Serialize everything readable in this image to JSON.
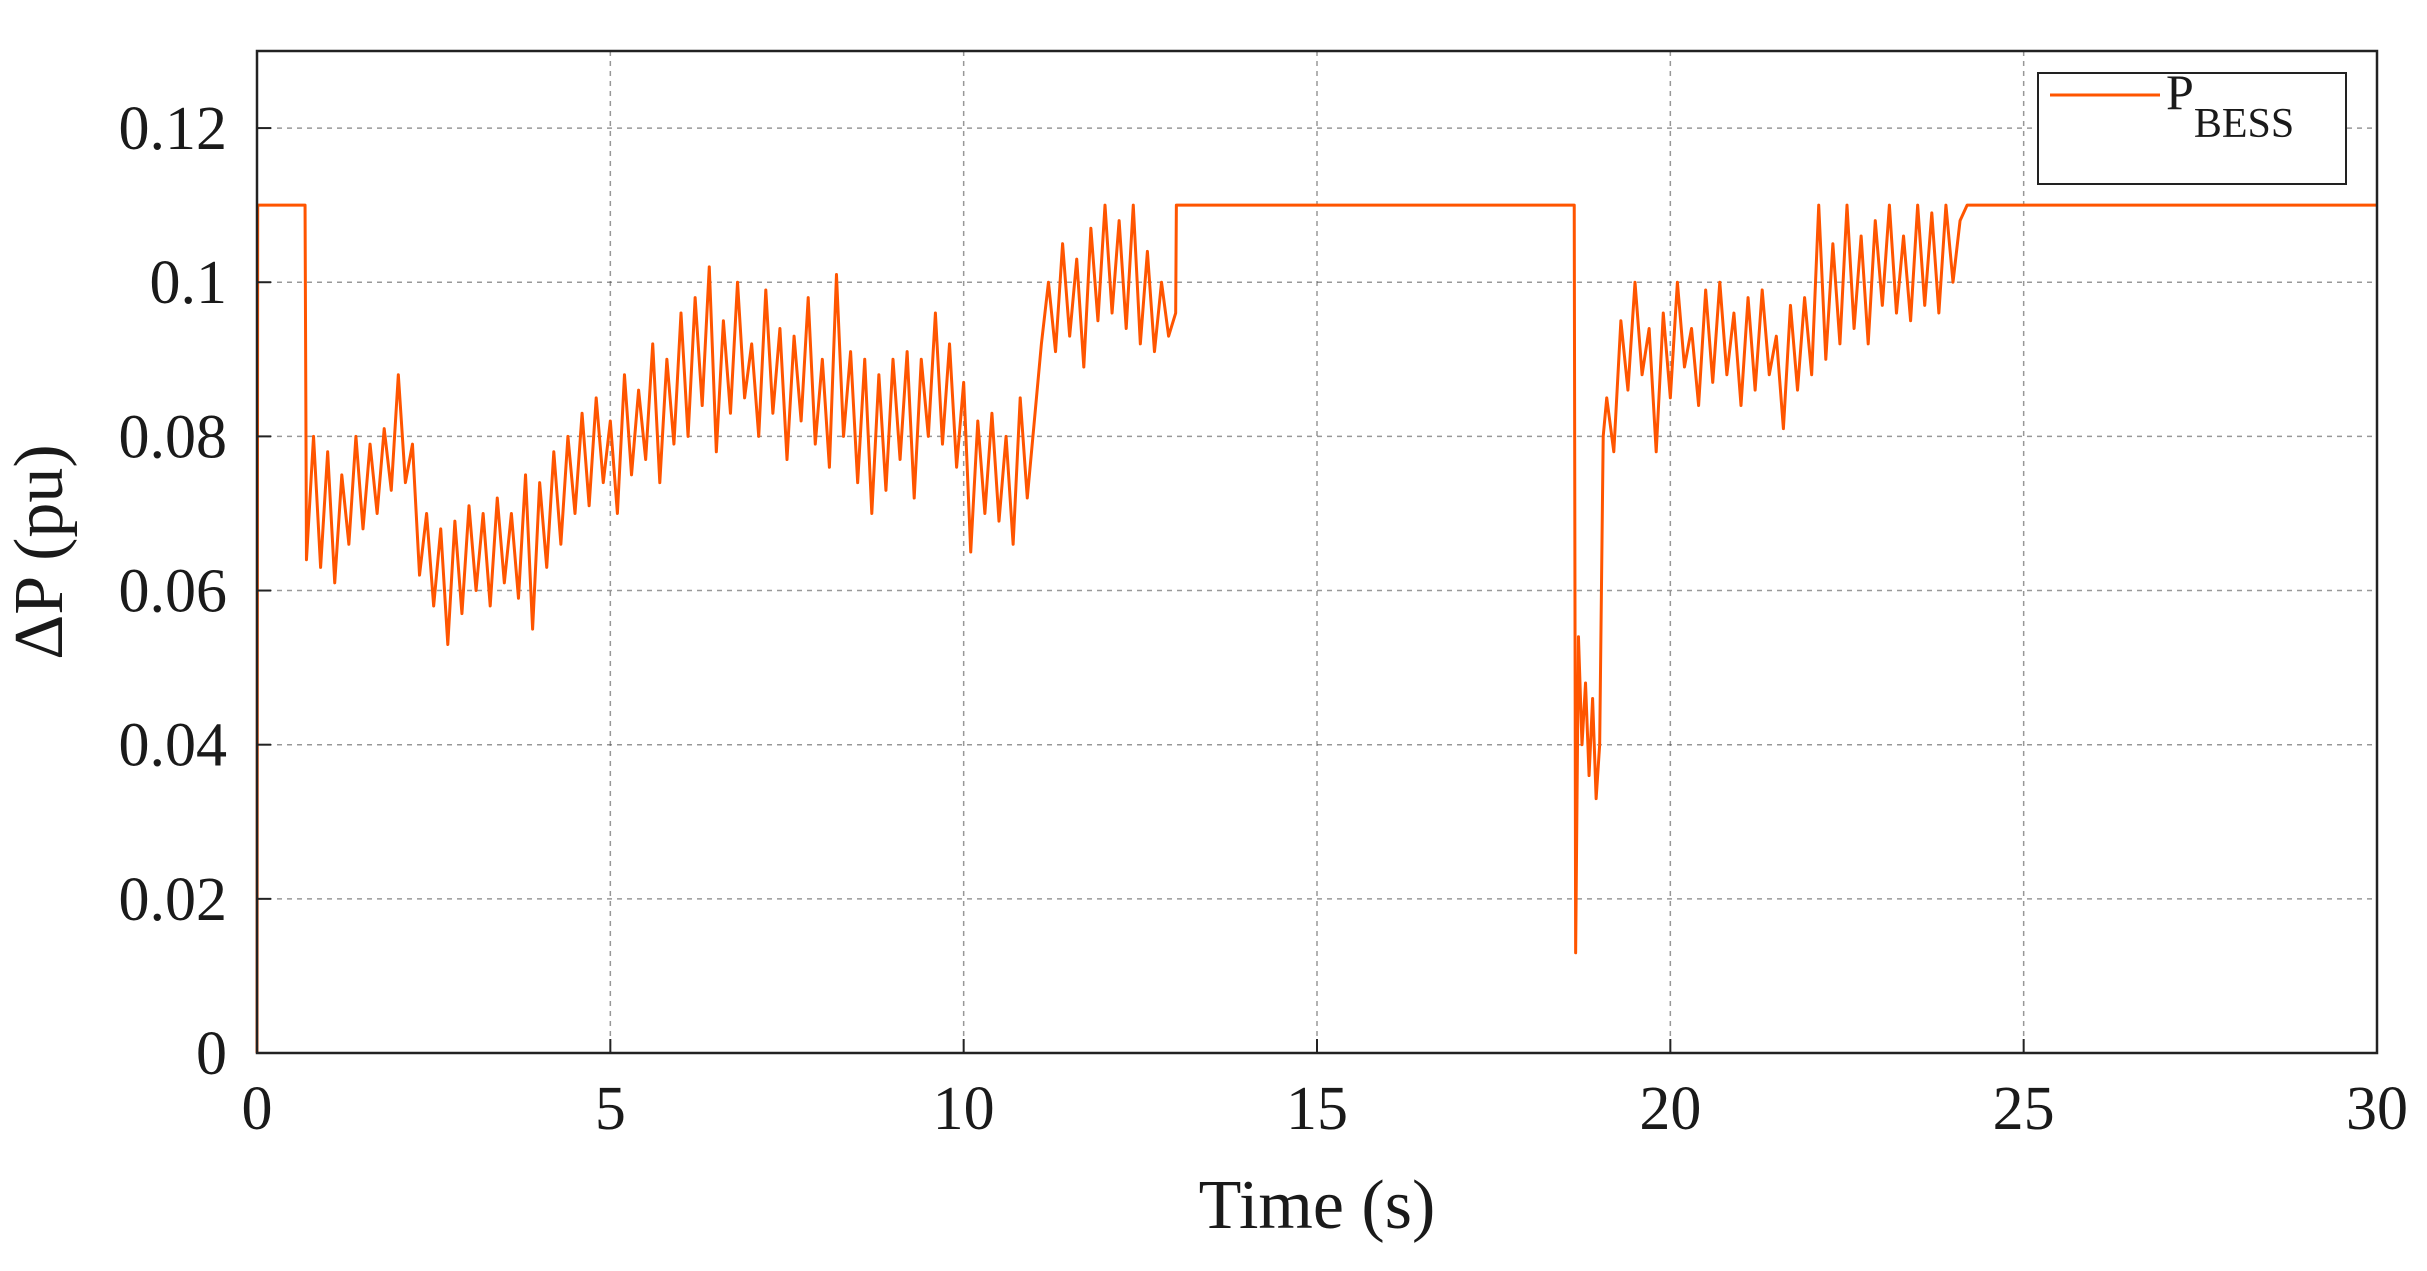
{
  "chart_data": {
    "type": "line",
    "xlabel": "Time (s)",
    "ylabel": "ΔP (pu)",
    "xlim": [
      0,
      30
    ],
    "xticks": [
      0,
      5,
      10,
      15,
      20,
      25,
      30
    ],
    "ylim": [
      0,
      0.13
    ],
    "yticks": [
      0,
      0.02,
      0.04,
      0.06,
      0.08,
      0.1,
      0.12
    ],
    "grid": true,
    "legend": "upper right",
    "x": [
      0,
      0.01,
      0.68,
      0.7,
      0.8,
      0.9,
      1.0,
      1.1,
      1.2,
      1.3,
      1.4,
      1.5,
      1.6,
      1.7,
      1.8,
      1.9,
      2.0,
      2.1,
      2.2,
      2.3,
      2.4,
      2.5,
      2.6,
      2.7,
      2.8,
      2.9,
      3.0,
      3.1,
      3.2,
      3.3,
      3.4,
      3.5,
      3.6,
      3.7,
      3.8,
      3.9,
      4.0,
      4.1,
      4.2,
      4.3,
      4.4,
      4.5,
      4.6,
      4.7,
      4.8,
      4.9,
      5.0,
      5.1,
      5.2,
      5.3,
      5.4,
      5.5,
      5.6,
      5.7,
      5.8,
      5.9,
      6.0,
      6.1,
      6.2,
      6.3,
      6.4,
      6.5,
      6.6,
      6.7,
      6.8,
      6.9,
      7.0,
      7.1,
      7.2,
      7.3,
      7.4,
      7.5,
      7.6,
      7.7,
      7.8,
      7.9,
      8.0,
      8.1,
      8.2,
      8.3,
      8.4,
      8.5,
      8.6,
      8.7,
      8.8,
      8.9,
      9.0,
      9.1,
      9.2,
      9.3,
      9.4,
      9.5,
      9.6,
      9.7,
      9.8,
      9.9,
      10.0,
      10.1,
      10.2,
      10.3,
      10.4,
      10.5,
      10.6,
      10.7,
      10.8,
      10.9,
      11.0,
      11.1,
      11.2,
      11.3,
      11.4,
      11.5,
      11.6,
      11.7,
      11.8,
      11.9,
      12.0,
      12.1,
      12.2,
      12.3,
      12.4,
      12.5,
      12.6,
      12.7,
      12.8,
      12.9,
      13.0,
      13.01,
      18.64,
      18.66,
      18.7,
      18.75,
      18.8,
      18.85,
      18.9,
      18.95,
      19.0,
      19.05,
      19.1,
      19.2,
      19.3,
      19.4,
      19.5,
      19.6,
      19.7,
      19.8,
      19.9,
      20.0,
      20.1,
      20.2,
      20.3,
      20.4,
      20.5,
      20.6,
      20.7,
      20.8,
      20.9,
      21.0,
      21.1,
      21.2,
      21.3,
      21.4,
      21.5,
      21.6,
      21.7,
      21.8,
      21.9,
      22.0,
      22.1,
      22.2,
      22.3,
      22.4,
      22.5,
      22.6,
      22.7,
      22.8,
      22.9,
      23.0,
      23.1,
      23.2,
      23.3,
      23.4,
      23.5,
      23.6,
      23.7,
      23.8,
      23.9,
      24.0,
      24.1,
      24.2,
      30
    ],
    "series": [
      {
        "name": "P",
        "name_subscript": "BESS",
        "color": "#ff5500",
        "values": [
          0,
          0.11,
          0.11,
          0.064,
          0.08,
          0.063,
          0.078,
          0.061,
          0.075,
          0.066,
          0.08,
          0.068,
          0.079,
          0.07,
          0.081,
          0.073,
          0.088,
          0.074,
          0.079,
          0.062,
          0.07,
          0.058,
          0.068,
          0.053,
          0.069,
          0.057,
          0.071,
          0.06,
          0.07,
          0.058,
          0.072,
          0.061,
          0.07,
          0.059,
          0.075,
          0.055,
          0.074,
          0.063,
          0.078,
          0.066,
          0.08,
          0.07,
          0.083,
          0.071,
          0.085,
          0.074,
          0.082,
          0.07,
          0.088,
          0.075,
          0.086,
          0.077,
          0.092,
          0.074,
          0.09,
          0.079,
          0.096,
          0.08,
          0.098,
          0.084,
          0.102,
          0.078,
          0.095,
          0.083,
          0.1,
          0.085,
          0.092,
          0.08,
          0.099,
          0.083,
          0.094,
          0.077,
          0.093,
          0.082,
          0.098,
          0.079,
          0.09,
          0.076,
          0.101,
          0.08,
          0.091,
          0.074,
          0.09,
          0.07,
          0.088,
          0.073,
          0.09,
          0.077,
          0.091,
          0.072,
          0.09,
          0.08,
          0.096,
          0.079,
          0.092,
          0.076,
          0.087,
          0.065,
          0.082,
          0.07,
          0.083,
          0.069,
          0.08,
          0.066,
          0.085,
          0.072,
          0.082,
          0.092,
          0.1,
          0.091,
          0.105,
          0.093,
          0.103,
          0.089,
          0.107,
          0.095,
          0.11,
          0.096,
          0.108,
          0.094,
          0.11,
          0.092,
          0.104,
          0.091,
          0.1,
          0.093,
          0.096,
          0.11,
          0.11,
          0.013,
          0.054,
          0.04,
          0.048,
          0.036,
          0.046,
          0.033,
          0.04,
          0.08,
          0.085,
          0.078,
          0.095,
          0.086,
          0.1,
          0.088,
          0.094,
          0.078,
          0.096,
          0.085,
          0.1,
          0.089,
          0.094,
          0.084,
          0.099,
          0.087,
          0.1,
          0.088,
          0.096,
          0.084,
          0.098,
          0.086,
          0.099,
          0.088,
          0.093,
          0.081,
          0.097,
          0.086,
          0.098,
          0.088,
          0.11,
          0.09,
          0.105,
          0.092,
          0.11,
          0.094,
          0.106,
          0.092,
          0.108,
          0.097,
          0.11,
          0.096,
          0.106,
          0.095,
          0.11,
          0.097,
          0.109,
          0.096,
          0.11,
          0.1,
          0.108,
          0.11,
          0.11
        ]
      }
    ]
  }
}
